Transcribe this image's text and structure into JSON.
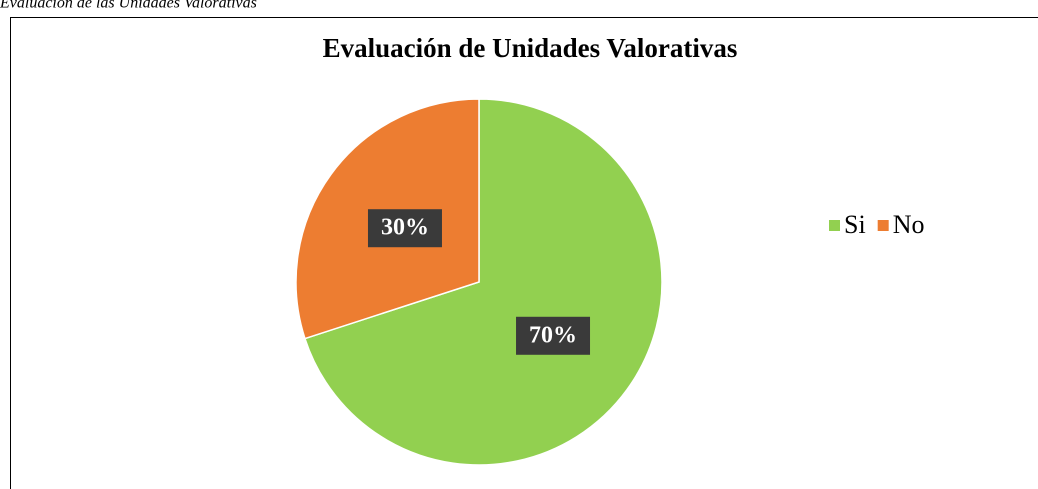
{
  "caption": "Evaluación de las Unidades Valorativas",
  "chart_data": {
    "type": "pie",
    "title": "Evaluación de Unidades Valorativas",
    "categories": [
      "Si",
      "No"
    ],
    "values": [
      70,
      30
    ],
    "value_labels": [
      "70%",
      "30%"
    ],
    "colors": [
      "#92d050",
      "#ed7d31"
    ],
    "legend": "right"
  }
}
